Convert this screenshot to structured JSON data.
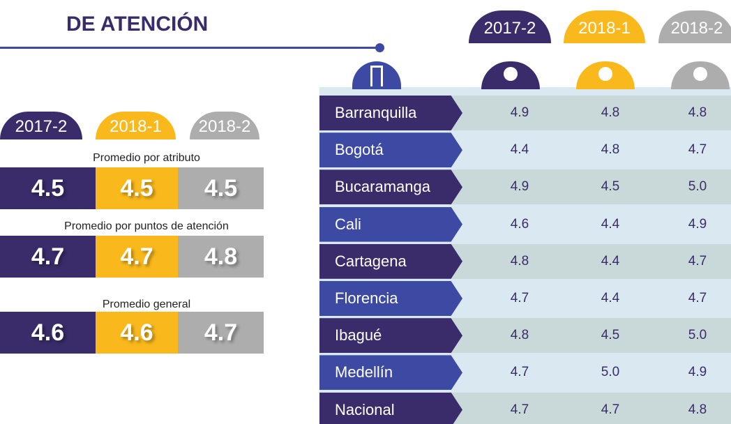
{
  "title": "DE ATENCIÓN",
  "periods": [
    "2017-2",
    "2018-1",
    "2018-2"
  ],
  "summary": [
    {
      "label": "Promedio por atributo",
      "values": [
        "4.5",
        "4.5",
        "4.5"
      ]
    },
    {
      "label": "Promedio por puntos de atención",
      "values": [
        "4.7",
        "4.7",
        "4.8"
      ]
    },
    {
      "label": "Promedio general",
      "values": [
        "4.6",
        "4.6",
        "4.7"
      ]
    }
  ],
  "table": {
    "rows": [
      {
        "city": "Barranquilla",
        "values": [
          "4.9",
          "4.8",
          "4.8"
        ]
      },
      {
        "city": "Bogotá",
        "values": [
          "4.4",
          "4.8",
          "4.7"
        ]
      },
      {
        "city": "Bucaramanga",
        "values": [
          "4.9",
          "4.5",
          "5.0"
        ]
      },
      {
        "city": "Cali",
        "values": [
          "4.6",
          "4.4",
          "4.9"
        ]
      },
      {
        "city": "Cartagena",
        "values": [
          "4.8",
          "4.4",
          "4.7"
        ]
      },
      {
        "city": "Florencia",
        "values": [
          "4.7",
          "4.4",
          "4.7"
        ]
      },
      {
        "city": "Ibagué",
        "values": [
          "4.8",
          "4.5",
          "5.0"
        ]
      },
      {
        "city": "Medellín",
        "values": [
          "4.7",
          "5.0",
          "4.9"
        ]
      },
      {
        "city": "Nacional",
        "values": [
          "4.7",
          "4.7",
          "4.8"
        ]
      }
    ]
  }
}
